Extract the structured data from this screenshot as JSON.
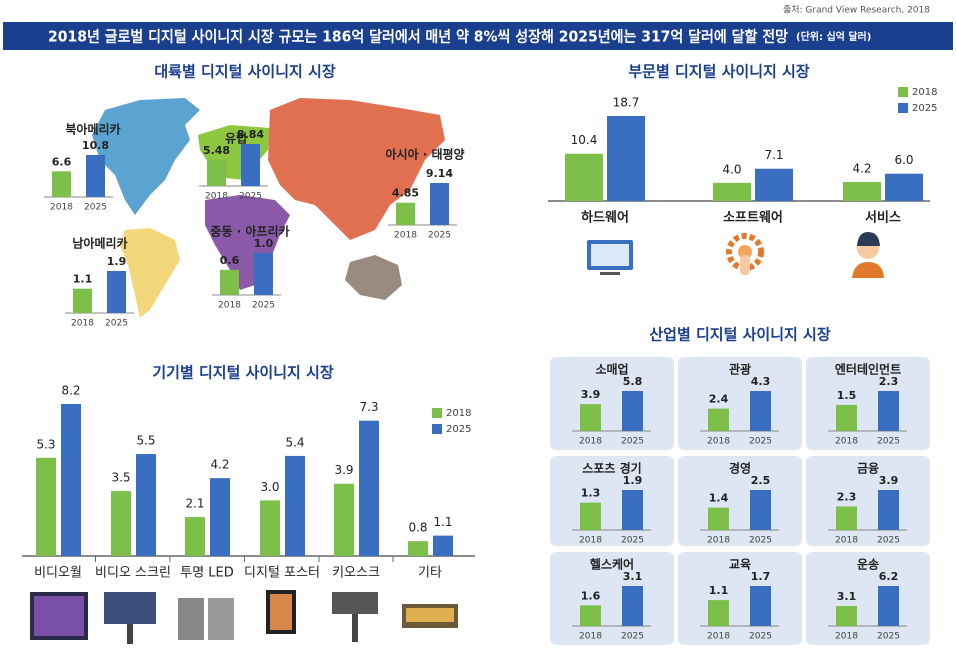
{
  "source": "출처: Grand View Research, 2018",
  "headline": "2018년 글로벌 디지털 사이니지 시장 규모는 186억 달러에서 매년 약 8%씩 성장해 2025년에는 317억 달러에 달할 전망",
  "unit": "(단위: 십억 달러)",
  "chart_data": [
    {
      "type": "minibar",
      "title": "대륙별 디지털 사이니지 시장",
      "categories": [
        "북아메리카",
        "유럽",
        "아시아 · 태평양",
        "중동 · 아프리카",
        "남아메리카"
      ],
      "series": [
        {
          "name": "2018",
          "color": "#7cc04a",
          "values": [
            6.6,
            5.48,
            4.85,
            0.6,
            1.1
          ]
        },
        {
          "name": "2025",
          "color": "#3a6ec1",
          "values": [
            10.8,
            8.84,
            9.14,
            1.0,
            1.9
          ],
          "value_labels": [
            "10.8",
            "8.84",
            "9.14",
            "1.0",
            "1.9"
          ]
        }
      ]
    },
    {
      "type": "bar",
      "title": "부문별 디지털 사이니지 시장",
      "legend": "top-right",
      "categories": [
        "하드웨어",
        "소프트웨어",
        "서비스"
      ],
      "series": [
        {
          "name": "2018",
          "color": "#7cc04a",
          "values": [
            10.4,
            4.0,
            4.2
          ],
          "value_labels": [
            "10.4",
            "4.0",
            "4.2"
          ]
        },
        {
          "name": "2025",
          "color": "#3a6ec1",
          "values": [
            18.7,
            7.1,
            6.0
          ],
          "value_labels": [
            "18.7",
            "7.1",
            "6.0"
          ]
        }
      ]
    },
    {
      "type": "bar",
      "title": "기기별 디지털 사이니지 시장",
      "legend": "top-right",
      "categories": [
        "비디오월",
        "비디오 스크린",
        "투명 LED",
        "디지털 포스터",
        "키오스크",
        "기타"
      ],
      "series": [
        {
          "name": "2018",
          "color": "#7cc04a",
          "values": [
            5.3,
            3.5,
            2.1,
            3.0,
            3.9,
            0.8
          ],
          "value_labels": [
            "5.3",
            "3.5",
            "2.1",
            "3.0",
            "3.9",
            "0.8"
          ]
        },
        {
          "name": "2025",
          "color": "#3a6ec1",
          "values": [
            8.2,
            5.5,
            4.2,
            5.4,
            7.3,
            1.1
          ]
        }
      ]
    },
    {
      "type": "minibar",
      "title": "산업별 디지털 사이니지 시장",
      "categories": [
        "소매업",
        "관광",
        "엔터테인먼트",
        "스포츠 경기",
        "경영",
        "금융",
        "헬스케어",
        "교육",
        "운송"
      ],
      "series": [
        {
          "name": "2018",
          "color": "#7cc04a",
          "values": [
            3.9,
            2.4,
            1.5,
            1.3,
            1.4,
            2.3,
            1.6,
            1.1,
            3.1
          ]
        },
        {
          "name": "2025",
          "color": "#3a6ec1",
          "values": [
            5.8,
            4.3,
            2.3,
            1.9,
            2.5,
            3.9,
            3.1,
            1.7,
            6.2
          ]
        }
      ]
    }
  ]
}
